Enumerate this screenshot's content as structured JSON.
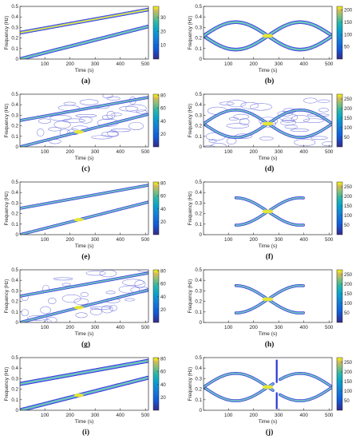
{
  "axes": {
    "xlabel": "Time (s)",
    "ylabel": "Frequency (Hz)",
    "xticks": [
      "100",
      "200",
      "300",
      "400",
      "500"
    ],
    "yticks": [
      "0",
      "0.1",
      "0.2",
      "0.3",
      "0.4",
      "0.5"
    ],
    "xlim": [
      1,
      512
    ],
    "ylim": [
      0,
      0.5
    ]
  },
  "colors": {
    "ridge": "#2a36d6",
    "core": "#5de0a0",
    "peak": "#f2ee2a",
    "frame": "#2b2b2b"
  },
  "panels": [
    {
      "label": "(a)",
      "signal": "linear",
      "style": "smooth",
      "cbar": [
        "10",
        "20",
        "30"
      ],
      "cmax": 38,
      "energy": 1.0
    },
    {
      "label": "(b)",
      "signal": "sine",
      "style": "smooth",
      "cbar": [
        "50",
        "100",
        "150",
        "200"
      ],
      "cmax": 215,
      "energy": 1.0
    },
    {
      "label": "(c)",
      "signal": "linear",
      "style": "noisy",
      "cbar": [
        "20",
        "40",
        "60",
        "80"
      ],
      "cmax": 82,
      "energy": 0.9
    },
    {
      "label": "(d)",
      "signal": "sine",
      "style": "noisy",
      "cbar": [
        "50",
        "100",
        "150",
        "200",
        "250"
      ],
      "cmax": 275,
      "energy": 0.9
    },
    {
      "label": "(e)",
      "signal": "linear",
      "style": "denoised",
      "cbar": [
        "20",
        "40",
        "60",
        "80"
      ],
      "cmax": 82,
      "energy": 0.9
    },
    {
      "label": "(f)",
      "signal": "sine",
      "style": "center",
      "cbar": [
        "50",
        "100",
        "150",
        "200",
        "250"
      ],
      "cmax": 275,
      "energy": 0.9
    },
    {
      "label": "(g)",
      "signal": "linear",
      "style": "noisy2",
      "cbar": [
        "20",
        "40",
        "60",
        "80"
      ],
      "cmax": 82,
      "energy": 0.9
    },
    {
      "label": "(h)",
      "signal": "sine",
      "style": "center",
      "cbar": [
        "50",
        "100",
        "150",
        "200",
        "250"
      ],
      "cmax": 275,
      "energy": 0.9
    },
    {
      "label": "(i)",
      "signal": "linear",
      "style": "thick",
      "cbar": [
        "20",
        "40",
        "60",
        "80"
      ],
      "cmax": 82,
      "energy": 0.9
    },
    {
      "label": "(j)",
      "signal": "sine",
      "style": "gapped",
      "cbar": [
        "50",
        "100",
        "150",
        "200",
        "250"
      ],
      "cmax": 275,
      "energy": 0.9
    }
  ],
  "chart_data": {
    "type": "heatmap",
    "description_of_signals": "two-component time-frequency ridges",
    "linear_components": [
      {
        "x": [
          1,
          512
        ],
        "y": [
          0.25,
          0.47
        ]
      },
      {
        "x": [
          1,
          512
        ],
        "y": [
          0.0,
          0.31
        ]
      }
    ],
    "sine_components": [
      {
        "x": [
          1,
          512
        ],
        "center": 0.22,
        "amplitude": 0.13,
        "period": 512,
        "phase": "rising-then-falling"
      },
      {
        "x": [
          1,
          512
        ],
        "center": 0.22,
        "amplitude": 0.13,
        "period": 512,
        "phase": "falling-then-rising"
      }
    ]
  }
}
